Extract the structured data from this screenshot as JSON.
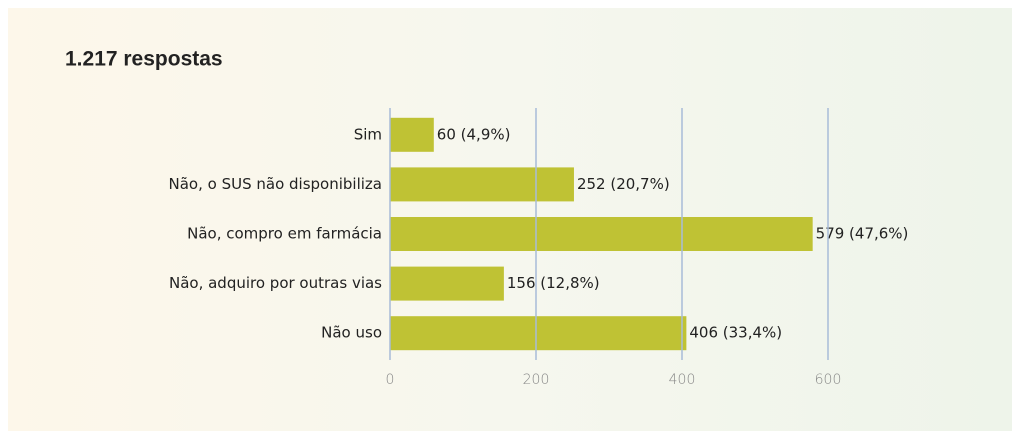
{
  "chart_data": {
    "type": "bar",
    "orientation": "horizontal",
    "title": "1.217 respostas",
    "categories": [
      "Sim",
      "Não, o SUS não disponibiliza",
      "Não, compro em farmácia",
      "Não, adquiro por outras vias",
      "Não uso"
    ],
    "values": [
      60,
      252,
      579,
      156,
      406
    ],
    "value_labels": [
      "60 (4,9%)",
      "252 (20,7%)",
      "579 (47,6%)",
      "156 (12,8%)",
      "406 (33,4%)"
    ],
    "color": "#bfc234",
    "xlim": [
      0,
      600
    ],
    "xticks": [
      0,
      200,
      400,
      600
    ],
    "grid": true,
    "grid_color": "#a8bcd8"
  }
}
